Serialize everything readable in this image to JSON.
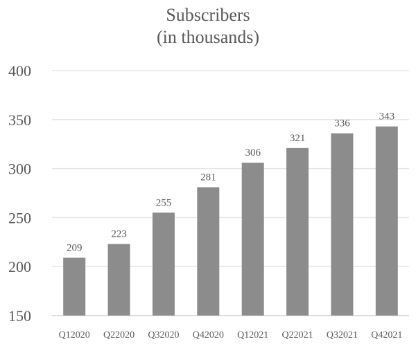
{
  "chart_data": {
    "type": "bar",
    "title": "Subscribers",
    "subtitle": "(in thousands)",
    "categories": [
      "Q12020",
      "Q22020",
      "Q32020",
      "Q42020",
      "Q12021",
      "Q22021",
      "Q32021",
      "Q42021"
    ],
    "values": [
      209,
      223,
      255,
      281,
      306,
      321,
      336,
      343
    ],
    "ylim": [
      150,
      400
    ],
    "yticks": [
      150,
      200,
      250,
      300,
      350,
      400
    ],
    "grid": true,
    "data_labels": true,
    "xlabel": "",
    "ylabel": "",
    "colors": {
      "bar": "#8c8c8c",
      "grid": "#e6e6e6",
      "text": "#595959"
    }
  }
}
